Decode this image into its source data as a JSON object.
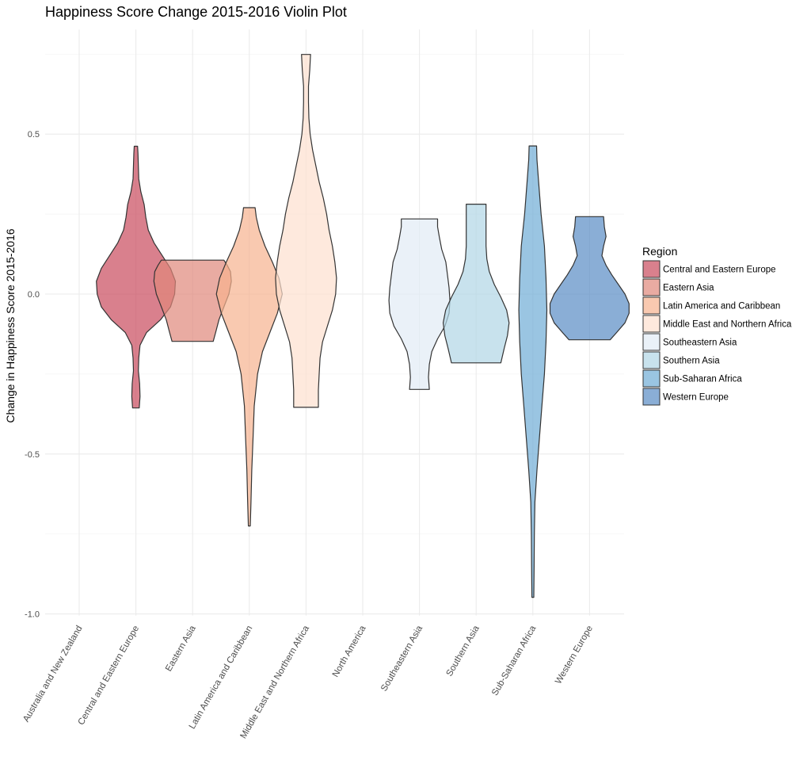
{
  "chart_data": {
    "type": "violin",
    "title": "Happiness Score Change 2015-2016 Violin Plot",
    "xlabel": "",
    "ylabel": "Change in Happiness Score 2015-2016",
    "ylim": [
      -1.0,
      0.75
    ],
    "y_ticks": [
      -1.0,
      -0.5,
      0.0,
      0.5
    ],
    "y_tick_labels": [
      "-1.0",
      "-0.5",
      "0.0",
      "0.5"
    ],
    "grid": true,
    "legend": {
      "title": "Region",
      "placement": "right"
    },
    "categories": [
      "Australia and New Zealand",
      "Central and Eastern Europe",
      "Eastern Asia",
      "Latin America and Caribbean",
      "Middle East and Northern Africa",
      "North America",
      "Southeastern Asia",
      "Southern Asia",
      "Sub-Saharan Africa",
      "Western Europe"
    ],
    "series": [
      {
        "name": "Central and Eastern Europe",
        "category": "Central and Eastern Europe",
        "color": "#c94a5c",
        "min": -0.356,
        "max": 0.462,
        "profile": [
          [
            -0.356,
            0.04
          ],
          [
            -0.32,
            0.05
          ],
          [
            -0.28,
            0.045
          ],
          [
            -0.24,
            0.03
          ],
          [
            -0.2,
            0.035
          ],
          [
            -0.16,
            0.05
          ],
          [
            -0.12,
            0.13
          ],
          [
            -0.08,
            0.3
          ],
          [
            -0.04,
            0.42
          ],
          [
            0.0,
            0.47
          ],
          [
            0.04,
            0.48
          ],
          [
            0.08,
            0.42
          ],
          [
            0.12,
            0.32
          ],
          [
            0.16,
            0.22
          ],
          [
            0.2,
            0.15
          ],
          [
            0.24,
            0.12
          ],
          [
            0.28,
            0.1
          ],
          [
            0.32,
            0.06
          ],
          [
            0.36,
            0.035
          ],
          [
            0.4,
            0.03
          ],
          [
            0.44,
            0.025
          ],
          [
            0.462,
            0.02
          ]
        ]
      },
      {
        "name": "Eastern Asia",
        "category": "Eastern Asia",
        "color": "#e0877a",
        "min": -0.148,
        "max": 0.106,
        "profile": [
          [
            -0.148,
            0.25
          ],
          [
            -0.12,
            0.28
          ],
          [
            -0.08,
            0.32
          ],
          [
            -0.04,
            0.38
          ],
          [
            0.0,
            0.44
          ],
          [
            0.04,
            0.47
          ],
          [
            0.07,
            0.46
          ],
          [
            0.09,
            0.42
          ],
          [
            0.106,
            0.38
          ]
        ]
      },
      {
        "name": "Latin America and Caribbean",
        "category": "Latin America and Caribbean",
        "color": "#f7b28f",
        "min": -0.725,
        "max": 0.27,
        "profile": [
          [
            -0.725,
            0.012
          ],
          [
            -0.65,
            0.02
          ],
          [
            -0.55,
            0.03
          ],
          [
            -0.45,
            0.045
          ],
          [
            -0.35,
            0.06
          ],
          [
            -0.25,
            0.1
          ],
          [
            -0.18,
            0.16
          ],
          [
            -0.12,
            0.25
          ],
          [
            -0.06,
            0.34
          ],
          [
            0.0,
            0.4
          ],
          [
            0.05,
            0.36
          ],
          [
            0.1,
            0.28
          ],
          [
            0.15,
            0.19
          ],
          [
            0.2,
            0.12
          ],
          [
            0.24,
            0.085
          ],
          [
            0.27,
            0.07
          ]
        ]
      },
      {
        "name": "Middle East and Northern Africa",
        "category": "Middle East and Northern Africa",
        "color": "#fde0cf",
        "min": -0.354,
        "max": 0.749,
        "profile": [
          [
            -0.354,
            0.15
          ],
          [
            -0.3,
            0.15
          ],
          [
            -0.25,
            0.16
          ],
          [
            -0.2,
            0.17
          ],
          [
            -0.15,
            0.2
          ],
          [
            -0.1,
            0.26
          ],
          [
            -0.05,
            0.32
          ],
          [
            0.0,
            0.36
          ],
          [
            0.05,
            0.37
          ],
          [
            0.1,
            0.35
          ],
          [
            0.15,
            0.32
          ],
          [
            0.2,
            0.28
          ],
          [
            0.25,
            0.25
          ],
          [
            0.3,
            0.21
          ],
          [
            0.35,
            0.16
          ],
          [
            0.4,
            0.12
          ],
          [
            0.45,
            0.08
          ],
          [
            0.5,
            0.05
          ],
          [
            0.55,
            0.035
          ],
          [
            0.6,
            0.03
          ],
          [
            0.65,
            0.03
          ],
          [
            0.7,
            0.045
          ],
          [
            0.749,
            0.055
          ]
        ]
      },
      {
        "name": "Southeastern Asia",
        "category": "Southeastern Asia",
        "color": "#e1ebf5",
        "min": -0.298,
        "max": 0.235,
        "profile": [
          [
            -0.298,
            0.12
          ],
          [
            -0.26,
            0.11
          ],
          [
            -0.22,
            0.12
          ],
          [
            -0.18,
            0.15
          ],
          [
            -0.14,
            0.22
          ],
          [
            -0.1,
            0.31
          ],
          [
            -0.06,
            0.36
          ],
          [
            -0.02,
            0.37
          ],
          [
            0.02,
            0.36
          ],
          [
            0.06,
            0.34
          ],
          [
            0.1,
            0.32
          ],
          [
            0.14,
            0.27
          ],
          [
            0.18,
            0.24
          ],
          [
            0.21,
            0.22
          ],
          [
            0.235,
            0.22
          ]
        ]
      },
      {
        "name": "Southern Asia",
        "category": "Southern Asia",
        "color": "#b0d5e6",
        "min": -0.215,
        "max": 0.281,
        "profile": [
          [
            -0.215,
            0.3
          ],
          [
            -0.17,
            0.34
          ],
          [
            -0.13,
            0.38
          ],
          [
            -0.09,
            0.4
          ],
          [
            -0.05,
            0.37
          ],
          [
            -0.01,
            0.3
          ],
          [
            0.03,
            0.22
          ],
          [
            0.07,
            0.16
          ],
          [
            0.11,
            0.13
          ],
          [
            0.15,
            0.12
          ],
          [
            0.2,
            0.12
          ],
          [
            0.25,
            0.12
          ],
          [
            0.281,
            0.12
          ]
        ]
      },
      {
        "name": "Sub-Saharan Africa",
        "category": "Sub-Saharan Africa",
        "color": "#6fadd6",
        "min": -0.948,
        "max": 0.463,
        "profile": [
          [
            -0.948,
            0.012
          ],
          [
            -0.85,
            0.015
          ],
          [
            -0.75,
            0.018
          ],
          [
            -0.65,
            0.025
          ],
          [
            -0.55,
            0.05
          ],
          [
            -0.45,
            0.08
          ],
          [
            -0.35,
            0.11
          ],
          [
            -0.25,
            0.14
          ],
          [
            -0.15,
            0.16
          ],
          [
            -0.05,
            0.17
          ],
          [
            0.05,
            0.16
          ],
          [
            0.15,
            0.14
          ],
          [
            0.25,
            0.1
          ],
          [
            0.35,
            0.07
          ],
          [
            0.42,
            0.05
          ],
          [
            0.463,
            0.045
          ]
        ]
      },
      {
        "name": "Western Europe",
        "category": "Western Europe",
        "color": "#588bc5",
        "min": -0.143,
        "max": 0.242,
        "profile": [
          [
            -0.143,
            0.25
          ],
          [
            -0.12,
            0.33
          ],
          [
            -0.09,
            0.43
          ],
          [
            -0.06,
            0.48
          ],
          [
            -0.03,
            0.48
          ],
          [
            0.0,
            0.43
          ],
          [
            0.03,
            0.35
          ],
          [
            0.06,
            0.27
          ],
          [
            0.09,
            0.2
          ],
          [
            0.12,
            0.15
          ],
          [
            0.15,
            0.17
          ],
          [
            0.18,
            0.2
          ],
          [
            0.21,
            0.18
          ],
          [
            0.242,
            0.17
          ]
        ]
      }
    ]
  }
}
